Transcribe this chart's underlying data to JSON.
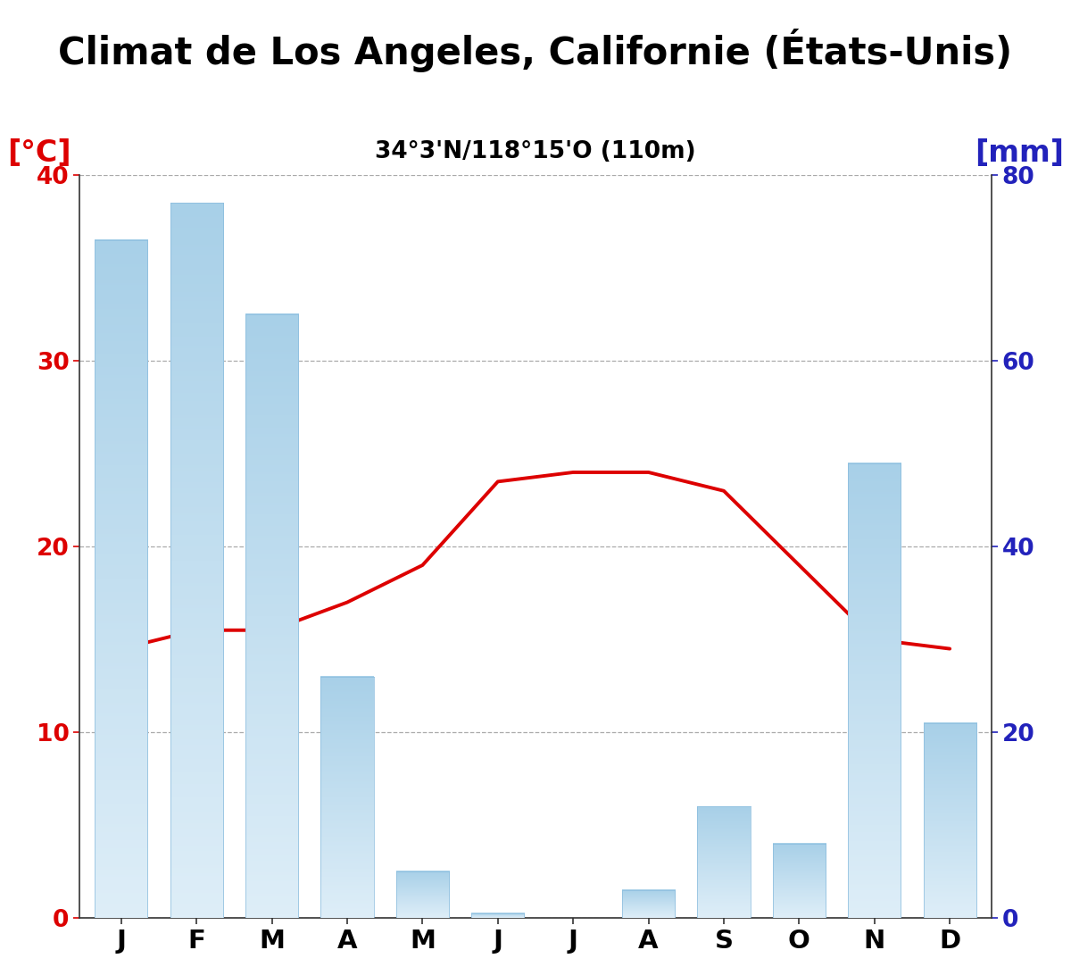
{
  "title": "Climat de Los Angeles, Californie (États-Unis)",
  "subtitle": "34°3'N/118°15'O (110m)",
  "months": [
    "J",
    "F",
    "M",
    "A",
    "M",
    "J",
    "J",
    "A",
    "S",
    "O",
    "N",
    "D"
  ],
  "precipitation_mm": [
    73,
    77,
    65,
    26,
    5,
    0.5,
    0,
    3,
    12,
    8,
    49,
    21
  ],
  "temperature_c": [
    14.5,
    15.5,
    15.5,
    17.0,
    19.0,
    23.5,
    24.0,
    24.0,
    23.0,
    19.0,
    15.0,
    14.5
  ],
  "bar_color_top": "#7fbfdf",
  "bar_color_bottom": "#deeef8",
  "line_color": "#dd0000",
  "left_axis_color": "#dd0000",
  "right_axis_color": "#2222bb",
  "title_fontsize": 30,
  "subtitle_fontsize": 19,
  "axis_label_fontsize": 24,
  "tick_fontsize": 19,
  "month_fontsize": 21,
  "left_label": "[°C]",
  "right_label": "[mm]",
  "temp_ylim": [
    0,
    40
  ],
  "precip_ylim": [
    0,
    80
  ],
  "temp_yticks": [
    0,
    10,
    20,
    30,
    40
  ],
  "precip_yticks": [
    0,
    20,
    40,
    60,
    80
  ],
  "background_color": "#ffffff",
  "spine_color": "#333333",
  "grid_color": "#aaaaaa"
}
